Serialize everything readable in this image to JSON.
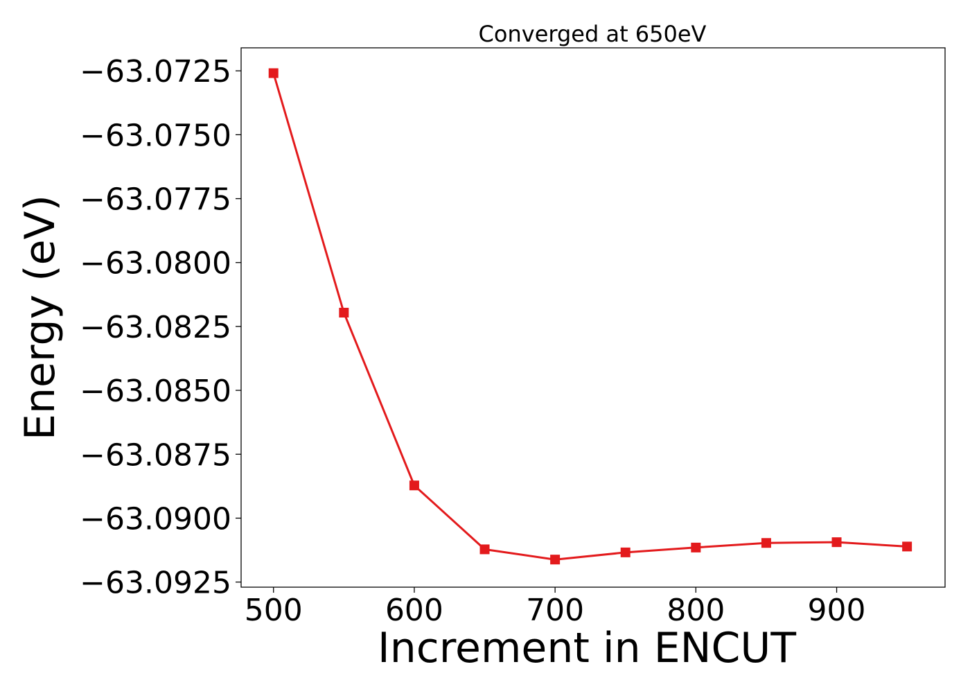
{
  "chart_data": {
    "type": "line",
    "title": "Converged at 650eV",
    "xlabel": "Increment in ENCUT",
    "ylabel": "Energy (eV)",
    "x": [
      500,
      550,
      600,
      650,
      700,
      750,
      800,
      850,
      900,
      950
    ],
    "series": [
      {
        "values": [
          -63.07259,
          -63.08196,
          -63.08872,
          -63.09122,
          -63.09162,
          -63.09134,
          -63.09115,
          -63.09097,
          -63.09094,
          -63.09111
        ],
        "color": "#e31a1c",
        "marker": "square"
      }
    ],
    "xlim": [
      477,
      977
    ],
    "ylim": [
      -63.0927,
      -63.0716
    ],
    "xticks": [
      500,
      600,
      700,
      800,
      900
    ],
    "xtick_labels": [
      "500",
      "600",
      "700",
      "800",
      "900"
    ],
    "yticks": [
      -63.0725,
      -63.075,
      -63.0775,
      -63.08,
      -63.0825,
      -63.085,
      -63.0875,
      -63.09,
      -63.0925
    ],
    "ytick_labels": [
      "−63.0725",
      "−63.0750",
      "−63.0775",
      "−63.0800",
      "−63.0825",
      "−63.0850",
      "−63.0875",
      "−63.0900",
      "−63.0925"
    ],
    "grid": false,
    "legend": "none"
  }
}
